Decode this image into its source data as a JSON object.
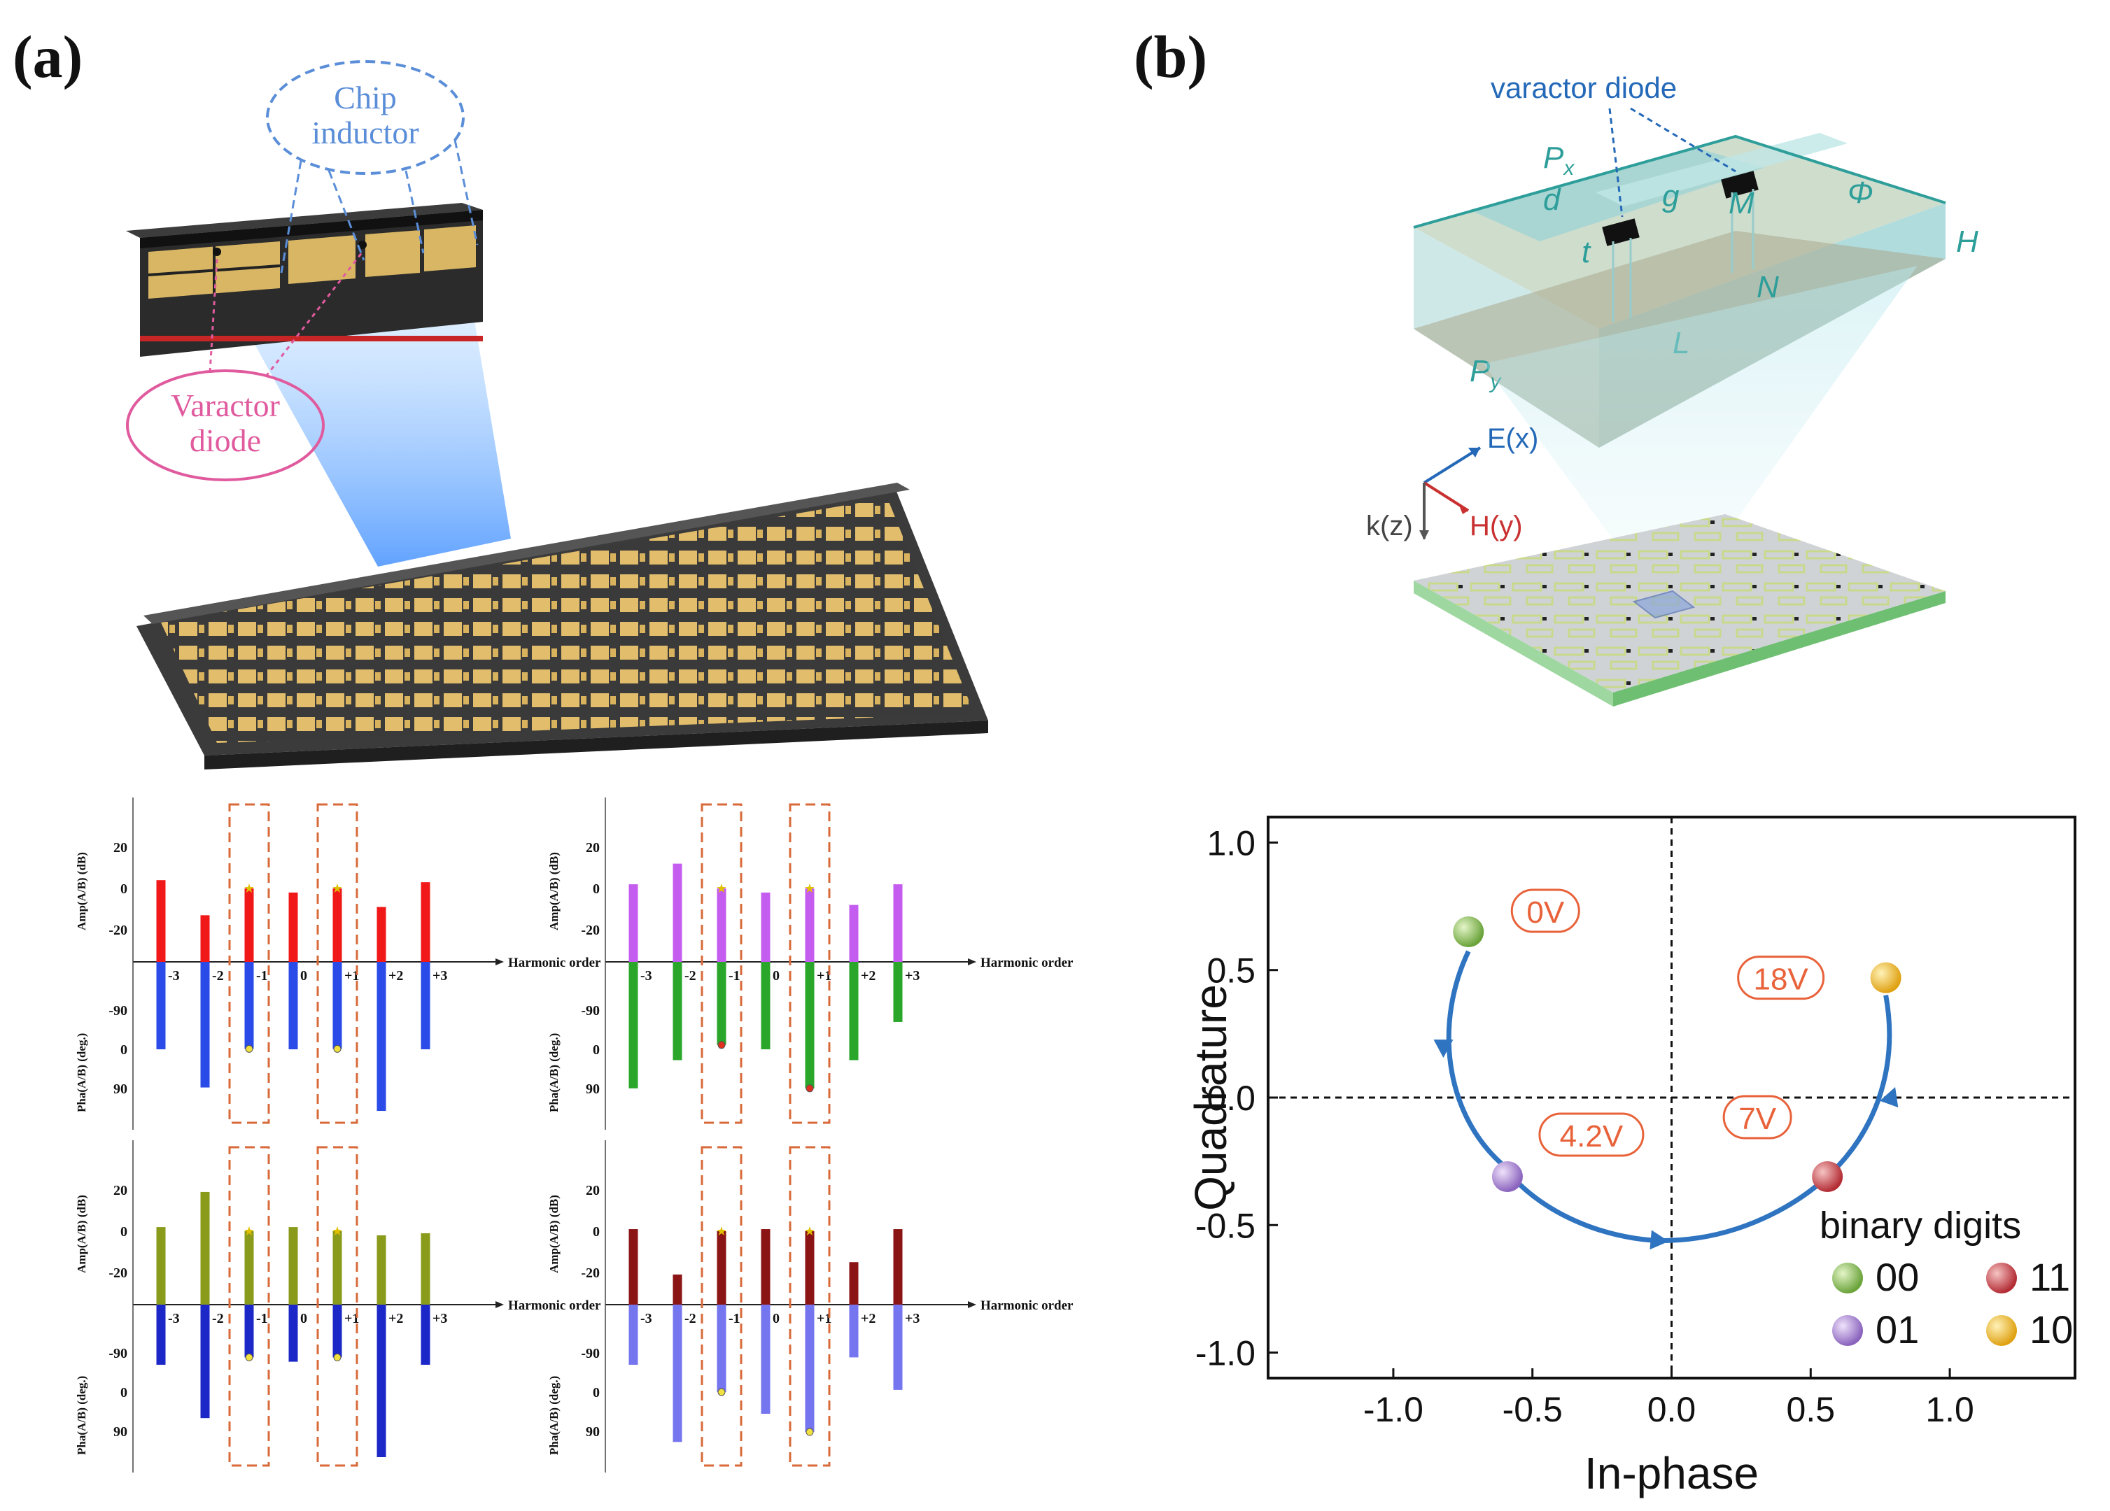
{
  "panel_a": {
    "label": "(a)",
    "callouts": {
      "chip_inductor": "Chip inductor",
      "chip_inductor_line1": "Chip",
      "chip_inductor_line2": "inductor",
      "varactor_line1": "Varactor",
      "varactor_line2": "diode"
    },
    "axis_labels": {
      "amp": "Amp(A/B) (dB)",
      "pha": "Pha(A/B) (deg.)",
      "harmonic": "Harmonic order"
    },
    "amp_ticks": [
      "20",
      "0",
      "-20"
    ],
    "pha_ticks": [
      "-90",
      "0",
      "90"
    ],
    "orders": [
      "-3",
      "-2",
      "-1",
      "0",
      "+1",
      "+2",
      "+3"
    ],
    "charts": [
      {
        "id": "00",
        "amp_color": "#f01818",
        "pha_color": "#2a4be8",
        "amp": [
          4,
          -13,
          0,
          -2,
          0,
          -9,
          3
        ],
        "pha": [
          0,
          88,
          -1,
          0,
          -1,
          142,
          0
        ]
      },
      {
        "id": "01",
        "amp_color": "#c45cf0",
        "pha_color": "#2aa62a",
        "amp": [
          2,
          12,
          0,
          -2,
          0,
          -8,
          2
        ],
        "pha": [
          90,
          25,
          -10,
          0,
          90,
          25,
          -63
        ]
      },
      {
        "id": "11",
        "amp_color": "#8a9a1a",
        "pha_color": "#1c27c8",
        "amp": [
          2,
          19,
          0,
          2,
          0,
          -2,
          -1
        ],
        "pha": [
          -63,
          60,
          -80,
          -70,
          -80,
          150,
          -63
        ]
      },
      {
        "id": "10",
        "amp_color": "#8b1414",
        "pha_color": "#7575f0",
        "amp": [
          1,
          -21,
          0,
          1,
          0,
          -15,
          1
        ],
        "pha": [
          -63,
          115,
          0,
          50,
          92,
          -80,
          -5
        ]
      }
    ]
  },
  "panel_b": {
    "label": "(b)",
    "unit_cell_labels": {
      "varactor": "varactor diode",
      "px": "P",
      "px_sub": "x",
      "py": "P",
      "py_sub": "y",
      "d": "d",
      "g": "g",
      "M": "M",
      "phi": "Φ",
      "H": "H",
      "t": "t",
      "N": "N",
      "L": "L"
    },
    "field_labels": {
      "e": "E(x)",
      "h": "H(y)",
      "k": "k(z)"
    },
    "colors": {
      "teal": "#2e9e9a",
      "arrow_blue": "#2469b8",
      "marker_red": "#e8623a"
    }
  },
  "chart_data": {
    "type": "scatter",
    "title": "",
    "xlabel": "In-phase",
    "ylabel": "Quadrature",
    "xlim": [
      -1.45,
      1.45
    ],
    "ylim": [
      -1.1,
      1.1
    ],
    "xticks": [
      "-1.0",
      "-0.5",
      "0.0",
      "0.5",
      "1.0"
    ],
    "yticks": [
      "1.0",
      "0.5",
      "0.0",
      "-0.5",
      "-1.0"
    ],
    "points": [
      {
        "x": -0.73,
        "y": 0.65,
        "state": "00",
        "voltage": "0V",
        "color": "#7cbb3c"
      },
      {
        "x": -0.59,
        "y": -0.31,
        "state": "01",
        "voltage": "4.2V",
        "color": "#9a74c8"
      },
      {
        "x": 0.56,
        "y": -0.31,
        "state": "11",
        "voltage": "7V",
        "color": "#c43a40"
      },
      {
        "x": 0.77,
        "y": 0.47,
        "state": "10",
        "voltage": "18V",
        "color": "#e8b21c"
      }
    ],
    "legend_title": "binary digits",
    "legend": [
      "00",
      "01",
      "11",
      "10"
    ]
  }
}
